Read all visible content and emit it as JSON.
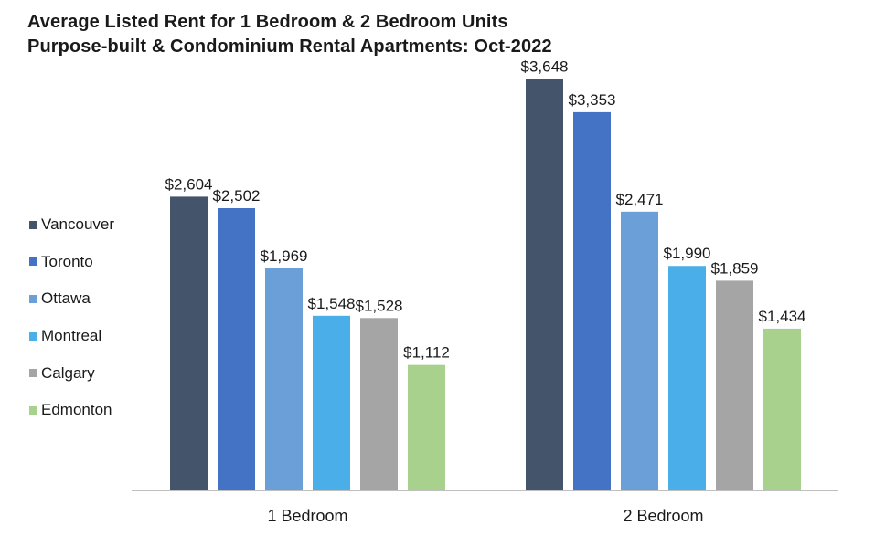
{
  "chart_data": {
    "type": "bar",
    "title": "Average Listed Rent for 1 Bedroom & 2 Bedroom Units",
    "subtitle": "Purpose-built & Condominium Rental Apartments: Oct-2022",
    "categories": [
      "1 Bedroom",
      "2 Bedroom"
    ],
    "series": [
      {
        "name": "Vancouver",
        "color": "#44546a",
        "values": [
          2604,
          3648
        ],
        "labels": [
          "$2,604",
          "$3,648"
        ]
      },
      {
        "name": "Toronto",
        "color": "#4472c4",
        "values": [
          2502,
          3353
        ],
        "labels": [
          "$2,502",
          "$3,353"
        ]
      },
      {
        "name": "Ottawa",
        "color": "#6a9fd8",
        "values": [
          1969,
          2471
        ],
        "labels": [
          "$1,969",
          "$2,471"
        ]
      },
      {
        "name": "Montreal",
        "color": "#4aaee8",
        "values": [
          1548,
          1990
        ],
        "labels": [
          "$1,548",
          "$1,990"
        ]
      },
      {
        "name": "Calgary",
        "color": "#a5a5a5",
        "values": [
          1528,
          1859
        ],
        "labels": [
          "$1,528",
          "$1,859"
        ]
      },
      {
        "name": "Edmonton",
        "color": "#a9d18e",
        "values": [
          1112,
          1434
        ],
        "labels": [
          "$1,112",
          "$1,434"
        ]
      }
    ],
    "ylim": [
      0,
      4000
    ],
    "grid": false,
    "legend": "left",
    "xlabel": "",
    "ylabel": ""
  }
}
